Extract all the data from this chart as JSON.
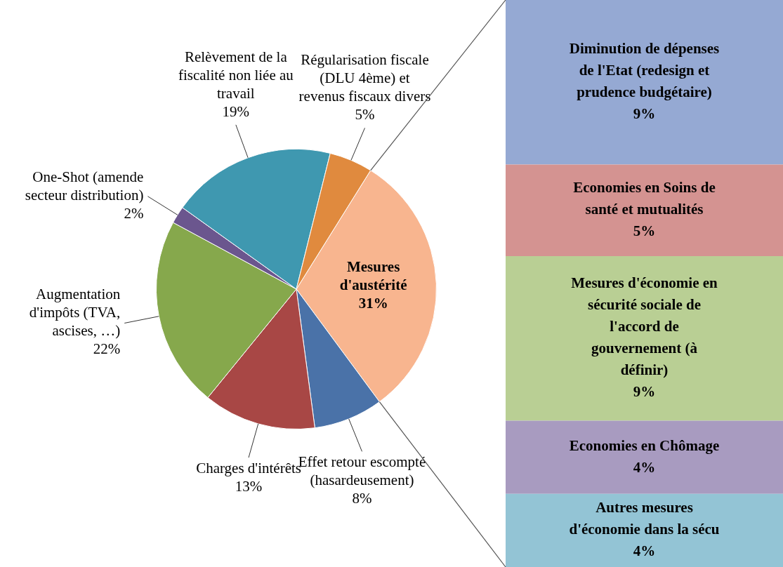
{
  "chart_data": [
    {
      "type": "pie",
      "categories": [
        "Mesures d'austérité",
        "Effet retour escompté (hasardeusement)",
        "Charges d'intérêts",
        "Augmentation d'impôts (TVA, ascises, …)",
        "One-Shot (amende secteur distribution)",
        "Relèvement de la fiscalité non liée au travail",
        "Régularisation fiscale (DLU 4ème) et revenus fiscaux divers"
      ],
      "values": [
        31,
        8,
        13,
        22,
        2,
        19,
        5
      ],
      "value_labels": [
        "31%",
        "8%",
        "13%",
        "22%",
        "2%",
        "19%",
        "5%"
      ],
      "colors": [
        "#f8b58f",
        "#4a72a8",
        "#a84745",
        "#86a84c",
        "#6b568e",
        "#3f98b0",
        "#e08a3e"
      ],
      "legend": false
    },
    {
      "type": "bar",
      "stacked": true,
      "categories": [
        null
      ],
      "tick_labels": false,
      "legend": false,
      "series": [
        {
          "name": "Autres mesures d'économie dans la sécu",
          "color": "#93c4d5",
          "values": [
            4
          ],
          "value_labels": [
            "4%"
          ]
        },
        {
          "name": "Economies en Chômage",
          "color": "#a89bc0",
          "values": [
            4
          ],
          "value_labels": [
            "4%"
          ]
        },
        {
          "name": "Mesures d'économie en sécurité sociale de l'accord de gouvernement (à définir)",
          "color": "#b9cf94",
          "values": [
            9
          ],
          "value_labels": [
            "9%"
          ]
        },
        {
          "name": "Economies en Soins de santé et mutualités",
          "color": "#d49391",
          "values": [
            5
          ],
          "value_labels": [
            "5%"
          ]
        },
        {
          "name": "Diminution de dépenses de l'Etat (redesign et prudence budgétaire)",
          "color": "#95a9d3",
          "values": [
            9
          ],
          "value_labels": [
            "9%"
          ]
        }
      ]
    }
  ]
}
